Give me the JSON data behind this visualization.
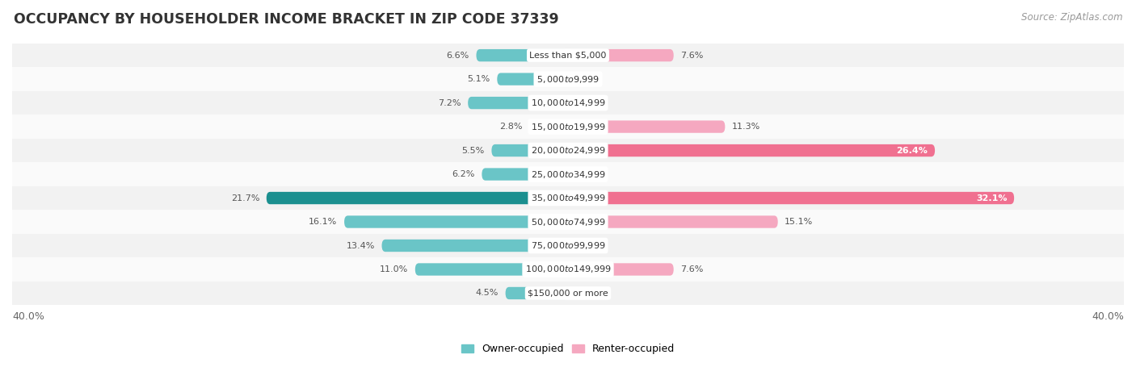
{
  "title": "OCCUPANCY BY HOUSEHOLDER INCOME BRACKET IN ZIP CODE 37339",
  "source": "Source: ZipAtlas.com",
  "categories": [
    "Less than $5,000",
    "$5,000 to $9,999",
    "$10,000 to $14,999",
    "$15,000 to $19,999",
    "$20,000 to $24,999",
    "$25,000 to $34,999",
    "$35,000 to $49,999",
    "$50,000 to $74,999",
    "$75,000 to $99,999",
    "$100,000 to $149,999",
    "$150,000 or more"
  ],
  "owner_values": [
    6.6,
    5.1,
    7.2,
    2.8,
    5.5,
    6.2,
    21.7,
    16.1,
    13.4,
    11.0,
    4.5
  ],
  "renter_values": [
    7.6,
    0.0,
    0.0,
    11.3,
    26.4,
    0.0,
    32.1,
    15.1,
    0.0,
    7.6,
    0.0
  ],
  "owner_color": "#6ac5c7",
  "renter_color_light": "#f5a8c0",
  "renter_color_dark": "#f07090",
  "owner_dark_color": "#1b8f8f",
  "renter_large_threshold": 20.0,
  "xlim": 40.0,
  "bar_height": 0.52,
  "legend_owner": "Owner-occupied",
  "legend_renter": "Renter-occupied",
  "title_fontsize": 12.5,
  "source_fontsize": 8.5,
  "label_fontsize": 9,
  "category_fontsize": 8,
  "axis_label_fontsize": 9,
  "value_fontsize": 8,
  "row_colors": [
    "#f2f2f2",
    "#fafafa"
  ]
}
